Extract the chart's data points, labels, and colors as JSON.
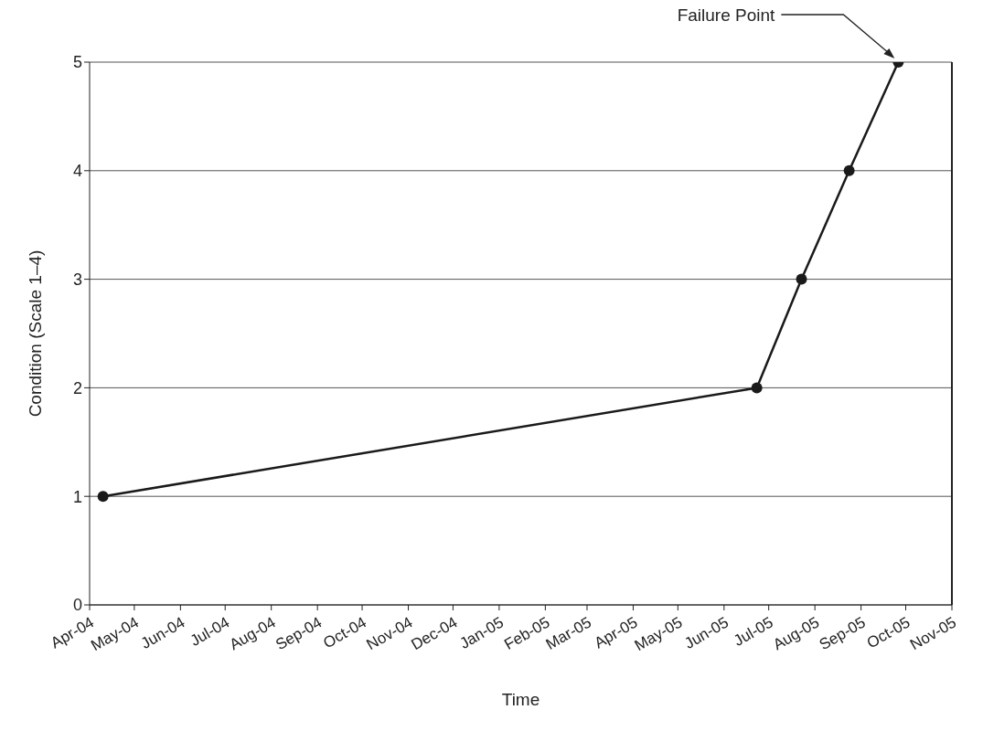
{
  "chart_data": {
    "type": "line",
    "xlabel": "Time",
    "ylabel": "Condition (Scale 1–4)",
    "x": [
      "2004-04-10",
      "2005-06-23",
      "2005-07-23",
      "2005-08-24",
      "2005-09-26"
    ],
    "values": [
      1,
      2,
      3,
      4,
      5
    ],
    "color": "#1a1a1a",
    "marker": "circle",
    "line_style": "solid",
    "grid": "y",
    "xlim": [
      "2004-04-01",
      "2005-11-01"
    ],
    "xticks": [
      {
        "value": "2004-04-01",
        "label": "Apr-04"
      },
      {
        "value": "2004-05-01",
        "label": "May-04"
      },
      {
        "value": "2004-06-01",
        "label": "Jun-04"
      },
      {
        "value": "2004-07-01",
        "label": "Jul-04"
      },
      {
        "value": "2004-08-01",
        "label": "Aug-04"
      },
      {
        "value": "2004-09-01",
        "label": "Sep-04"
      },
      {
        "value": "2004-10-01",
        "label": "Oct-04"
      },
      {
        "value": "2004-11-01",
        "label": "Nov-04"
      },
      {
        "value": "2004-12-01",
        "label": "Dec-04"
      },
      {
        "value": "2005-01-01",
        "label": "Jan-05"
      },
      {
        "value": "2005-02-01",
        "label": "Feb-05"
      },
      {
        "value": "2005-03-01",
        "label": "Mar-05"
      },
      {
        "value": "2005-04-01",
        "label": "Apr-05"
      },
      {
        "value": "2005-05-01",
        "label": "May-05"
      },
      {
        "value": "2005-06-01",
        "label": "Jun-05"
      },
      {
        "value": "2005-07-01",
        "label": "Jul-05"
      },
      {
        "value": "2005-08-01",
        "label": "Aug-05"
      },
      {
        "value": "2005-09-01",
        "label": "Sep-05"
      },
      {
        "value": "2005-10-01",
        "label": "Oct-05"
      },
      {
        "value": "2005-11-01",
        "label": "Nov-05"
      }
    ],
    "ylim": [
      0,
      5
    ],
    "yticks": [
      0,
      1,
      2,
      3,
      4,
      5
    ],
    "annotations": [
      "Failure Point"
    ]
  }
}
